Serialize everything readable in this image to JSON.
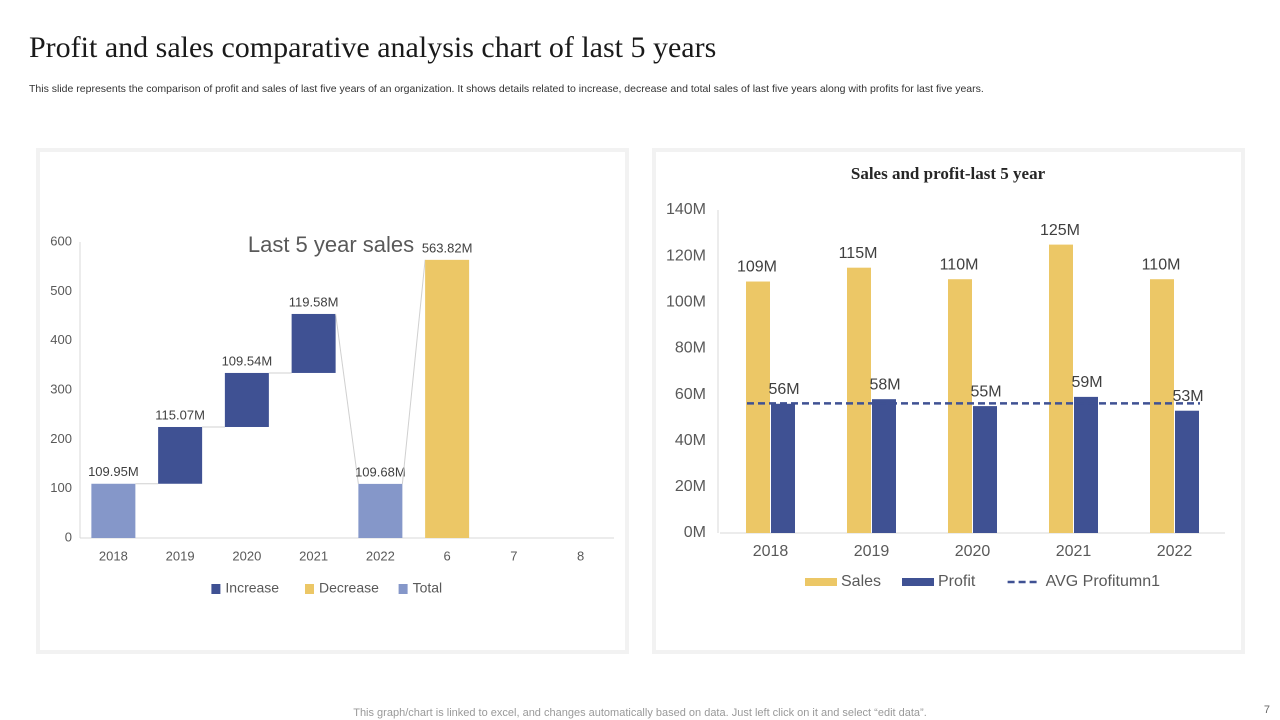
{
  "header": {
    "title": "Profit and sales comparative analysis chart of last 5 years",
    "subtitle": "This slide represents the comparison of profit and sales of last five years of an organization. It shows details related to increase, decrease and total sales of last five years along with profits for last five years."
  },
  "footer": {
    "note": "This graph/chart is linked to excel,  and changes automatically based on data. Just left click on it and select “edit data”.",
    "page": "7"
  },
  "chart_data": [
    {
      "type": "waterfall",
      "title": "Last 5 year sales",
      "categories": [
        "2018",
        "2019",
        "2020",
        "2021",
        "2022",
        "6",
        "7",
        "8"
      ],
      "series": [
        {
          "name": "Increase",
          "color": "#3f5193",
          "values": [
            null,
            115.07,
            109.54,
            119.58,
            null,
            null,
            null,
            null
          ],
          "value_labels": [
            null,
            "115.07M",
            "109.54M",
            "119.58M",
            null,
            null,
            null,
            null
          ]
        },
        {
          "name": "Decrease",
          "color": "#ecc766",
          "values": [
            null,
            null,
            null,
            null,
            null,
            563.82,
            null,
            null
          ],
          "value_labels": [
            null,
            null,
            null,
            null,
            null,
            "563.82M",
            null,
            null
          ]
        },
        {
          "name": "Total",
          "color": "#8597c9",
          "values": [
            109.95,
            null,
            null,
            null,
            109.68,
            null,
            null,
            null
          ],
          "value_labels": [
            "109.95M",
            null,
            null,
            null,
            "109.68M",
            null,
            null,
            null
          ]
        }
      ],
      "ylim": [
        0,
        600
      ],
      "yticks": [
        0,
        100,
        200,
        300,
        400,
        500,
        600
      ],
      "grid": false,
      "legend": "bottom"
    },
    {
      "type": "bar",
      "title": "Sales and profit-last 5 year",
      "categories": [
        "2018",
        "2019",
        "2020",
        "2021",
        "2022"
      ],
      "series": [
        {
          "name": "Sales",
          "color": "#ecc766",
          "values": [
            109,
            115,
            110,
            125,
            110
          ],
          "value_labels": [
            "109M",
            "115M",
            "110M",
            "125M",
            "110M"
          ]
        },
        {
          "name": "Profit",
          "color": "#3f5193",
          "values": [
            56,
            58,
            55,
            59,
            53
          ],
          "value_labels": [
            "56M",
            "58M",
            "55M",
            "59M",
            "53M"
          ]
        },
        {
          "name": "AVG Profitumn1",
          "color": "#3f5193",
          "type": "line",
          "dashed": true,
          "values": [
            56.2,
            56.2,
            56.2,
            56.2,
            56.2
          ]
        }
      ],
      "ylim": [
        0,
        140
      ],
      "yticks": [
        {
          "value": 0,
          "label": "0M"
        },
        {
          "value": 20,
          "label": "20M"
        },
        {
          "value": 40,
          "label": "40M"
        },
        {
          "value": 60,
          "label": "60M"
        },
        {
          "value": 80,
          "label": "80M"
        },
        {
          "value": 100,
          "label": "100M"
        },
        {
          "value": 120,
          "label": "120M"
        },
        {
          "value": 140,
          "label": "140M"
        }
      ],
      "grid": false,
      "legend": "bottom"
    }
  ]
}
